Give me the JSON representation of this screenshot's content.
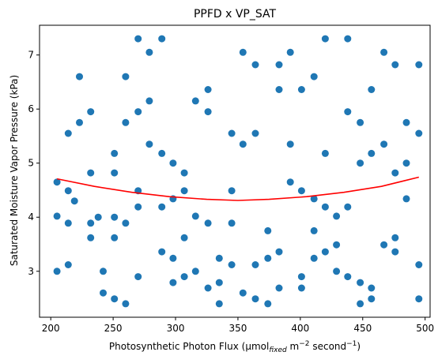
{
  "chart_data": {
    "type": "scatter",
    "title": "PPFD x VP_SAT",
    "xlabel": {
      "pre": "Photosynthetic Photon Flux (μmol",
      "sub": "fixed",
      "mid1": " m",
      "sup1": "−2",
      "mid2": " second",
      "sup2": "−1",
      "post": ")"
    },
    "ylabel": "Saturated Moisture Vapor Pressure (kPa)",
    "xlim": [
      191,
      504
    ],
    "ylim": [
      2.15,
      7.55
    ],
    "xticks": [
      200,
      250,
      300,
      350,
      400,
      450,
      500
    ],
    "yticks": [
      3,
      4,
      5,
      6,
      7
    ],
    "grid": false,
    "colors": {
      "points": "#1f77b4",
      "fit": "#ff0000"
    },
    "points": [
      [
        205,
        4.65
      ],
      [
        205,
        4.02
      ],
      [
        205,
        3.0
      ],
      [
        214,
        5.55
      ],
      [
        214,
        4.49
      ],
      [
        214,
        3.89
      ],
      [
        214,
        3.12
      ],
      [
        219,
        4.3
      ],
      [
        223,
        6.6
      ],
      [
        223,
        5.75
      ],
      [
        232,
        5.95
      ],
      [
        232,
        4.82
      ],
      [
        232,
        3.89
      ],
      [
        232,
        3.62
      ],
      [
        238,
        4.0
      ],
      [
        242,
        3.0
      ],
      [
        242,
        2.6
      ],
      [
        251,
        5.18
      ],
      [
        251,
        4.82
      ],
      [
        251,
        4.0
      ],
      [
        251,
        3.62
      ],
      [
        251,
        2.49
      ],
      [
        260,
        6.6
      ],
      [
        260,
        5.75
      ],
      [
        260,
        3.89
      ],
      [
        260,
        2.4
      ],
      [
        270,
        7.3
      ],
      [
        270,
        5.95
      ],
      [
        270,
        4.49
      ],
      [
        270,
        4.19
      ],
      [
        270,
        2.9
      ],
      [
        279,
        7.05
      ],
      [
        279,
        6.15
      ],
      [
        279,
        5.35
      ],
      [
        289,
        7.3
      ],
      [
        289,
        5.18
      ],
      [
        289,
        4.19
      ],
      [
        289,
        3.36
      ],
      [
        298,
        5.0
      ],
      [
        298,
        4.34
      ],
      [
        298,
        3.24
      ],
      [
        298,
        2.79
      ],
      [
        307,
        4.82
      ],
      [
        307,
        4.49
      ],
      [
        307,
        3.62
      ],
      [
        307,
        2.9
      ],
      [
        316,
        6.15
      ],
      [
        316,
        4.02
      ],
      [
        316,
        3.0
      ],
      [
        326,
        6.36
      ],
      [
        326,
        5.95
      ],
      [
        326,
        3.89
      ],
      [
        326,
        2.69
      ],
      [
        335,
        3.24
      ],
      [
        335,
        2.79
      ],
      [
        335,
        2.4
      ],
      [
        345,
        5.55
      ],
      [
        345,
        4.49
      ],
      [
        345,
        3.89
      ],
      [
        345,
        3.12
      ],
      [
        354,
        7.05
      ],
      [
        354,
        5.35
      ],
      [
        354,
        2.6
      ],
      [
        364,
        6.82
      ],
      [
        364,
        5.55
      ],
      [
        364,
        3.12
      ],
      [
        364,
        2.49
      ],
      [
        374,
        3.75
      ],
      [
        374,
        3.24
      ],
      [
        374,
        2.4
      ],
      [
        383,
        6.82
      ],
      [
        383,
        6.36
      ],
      [
        383,
        3.36
      ],
      [
        383,
        2.69
      ],
      [
        392,
        7.05
      ],
      [
        392,
        5.35
      ],
      [
        392,
        4.65
      ],
      [
        401,
        6.36
      ],
      [
        401,
        4.49
      ],
      [
        401,
        2.9
      ],
      [
        401,
        2.69
      ],
      [
        411,
        6.6
      ],
      [
        411,
        4.34
      ],
      [
        411,
        3.75
      ],
      [
        411,
        3.24
      ],
      [
        420,
        7.3
      ],
      [
        420,
        5.18
      ],
      [
        420,
        4.19
      ],
      [
        420,
        3.36
      ],
      [
        429,
        4.02
      ],
      [
        429,
        3.49
      ],
      [
        429,
        3.0
      ],
      [
        438,
        7.3
      ],
      [
        438,
        5.95
      ],
      [
        438,
        4.19
      ],
      [
        438,
        2.9
      ],
      [
        448,
        5.75
      ],
      [
        448,
        5.0
      ],
      [
        448,
        2.79
      ],
      [
        448,
        2.4
      ],
      [
        457,
        6.36
      ],
      [
        457,
        5.18
      ],
      [
        457,
        2.69
      ],
      [
        457,
        2.49
      ],
      [
        467,
        7.05
      ],
      [
        467,
        5.35
      ],
      [
        467,
        3.49
      ],
      [
        476,
        6.82
      ],
      [
        476,
        4.82
      ],
      [
        476,
        3.62
      ],
      [
        476,
        3.36
      ],
      [
        485,
        5.75
      ],
      [
        485,
        5.0
      ],
      [
        485,
        4.34
      ],
      [
        495,
        6.82
      ],
      [
        495,
        5.55
      ],
      [
        495,
        3.12
      ],
      [
        495,
        2.49
      ]
    ],
    "fit_line": [
      [
        205,
        4.71
      ],
      [
        235,
        4.57
      ],
      [
        265,
        4.46
      ],
      [
        295,
        4.38
      ],
      [
        325,
        4.33
      ],
      [
        350,
        4.31
      ],
      [
        375,
        4.33
      ],
      [
        405,
        4.38
      ],
      [
        435,
        4.46
      ],
      [
        465,
        4.57
      ],
      [
        495,
        4.74
      ]
    ]
  }
}
